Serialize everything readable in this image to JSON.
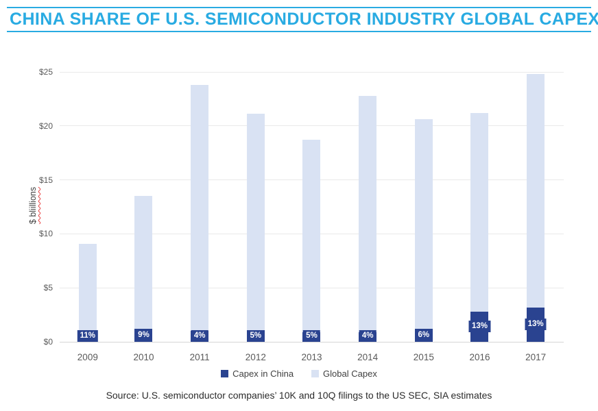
{
  "title": "CHINA SHARE OF U.S. SEMICONDUCTOR INDUSTRY GLOBAL CAPEX",
  "source": "Source: U.S. semiconductor companies’ 10K and 10Q filings to the US SEC, SIA estimates",
  "legend": [
    {
      "label": "Capex in China",
      "color": "#2A4390"
    },
    {
      "label": "Global Capex",
      "color": "#D9E2F3"
    }
  ],
  "colors": {
    "title_accent": "#29ABE2",
    "capex_china": "#2A4390",
    "global_capex": "#D9E2F3",
    "gridline": "#E9E9E9",
    "axis_line": "#D6D6D6",
    "tick_text": "#595959",
    "spellcheck_underline": "#E84040"
  },
  "chart_data": {
    "type": "bar",
    "subtype": "stacked",
    "title": "CHINA SHARE OF U.S. SEMICONDUCTOR INDUSTRY GLOBAL CAPEX",
    "categories": [
      "2009",
      "2010",
      "2011",
      "2012",
      "2013",
      "2014",
      "2015",
      "2016",
      "2017"
    ],
    "series": [
      {
        "name": "Capex in China",
        "values": [
          1.0,
          1.2,
          1.0,
          1.1,
          0.9,
          0.9,
          1.2,
          2.8,
          3.2
        ]
      },
      {
        "name": "Global Capex",
        "values": [
          9.1,
          13.5,
          23.8,
          21.1,
          18.7,
          22.8,
          20.6,
          21.2,
          24.8
        ],
        "note": "total bar height (global capex incl. China)"
      }
    ],
    "bar_labels": [
      "11%",
      "9%",
      "4%",
      "5%",
      "5%",
      "4%",
      "6%",
      "13%",
      "13%"
    ],
    "xlabel": "",
    "ylabel": "$ bliillions",
    "yticks": [
      "$0",
      "$5",
      "$10",
      "$15",
      "$20",
      "$25"
    ],
    "ylim": [
      0,
      25
    ],
    "grid": true,
    "legend_position": "bottom"
  }
}
